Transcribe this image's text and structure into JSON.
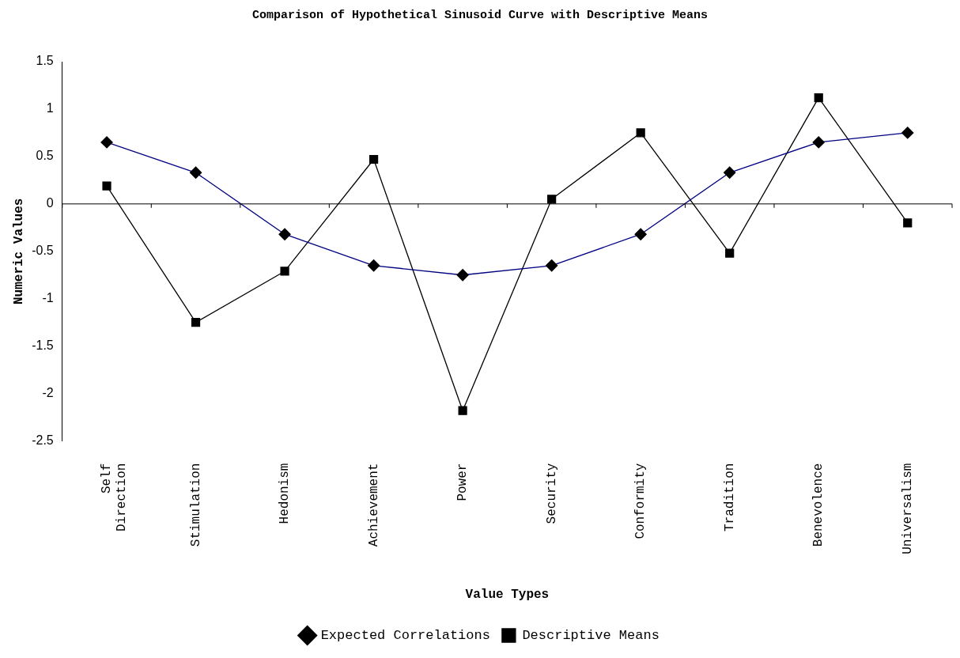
{
  "chart_data": {
    "type": "line",
    "title": "Comparison of Hypothetical Sinusoid Curve with Descriptive Means",
    "xlabel": "Value Types",
    "ylabel": "Numeric Values",
    "categories": [
      "Self Direction",
      "Stimulation",
      "Hedonism",
      "Achievement",
      "Power",
      "Security",
      "Conformity",
      "Tradition",
      "Benevolence",
      "Universalism"
    ],
    "series": [
      {
        "name": "Expected Correlations",
        "color": "#000080",
        "marker": "diamond",
        "values": [
          0.65,
          0.33,
          -0.32,
          -0.65,
          -0.75,
          -0.65,
          -0.32,
          0.33,
          0.65,
          0.75
        ]
      },
      {
        "name": "Descriptive Means",
        "color": "#000000",
        "marker": "square",
        "values": [
          0.19,
          -1.25,
          -0.71,
          0.47,
          -2.18,
          0.05,
          0.75,
          -0.52,
          1.12,
          -0.2
        ]
      }
    ],
    "ylim": [
      -2.5,
      1.5
    ],
    "yticks": [
      -2.5,
      -2,
      -1.5,
      -1,
      -0.5,
      0,
      0.5,
      1,
      1.5
    ],
    "ref_lines": [
      {
        "axis": "y",
        "value": 0,
        "color": "#000000"
      }
    ],
    "grid": false,
    "legend": "bottom",
    "line_style": "solid"
  }
}
